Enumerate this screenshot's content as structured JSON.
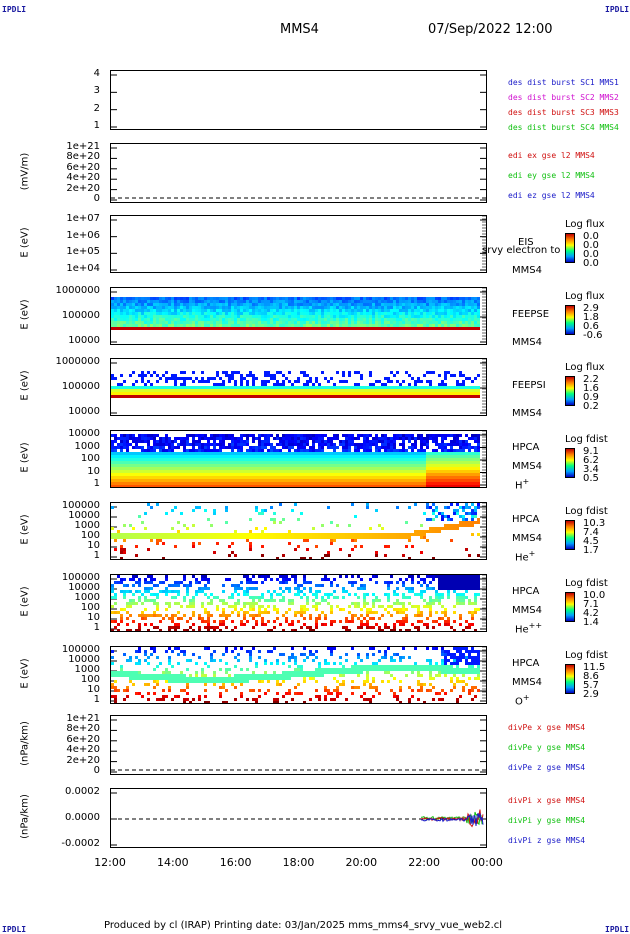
{
  "corners": {
    "tl": "IPDLI",
    "tr": "IPDLI",
    "bl": "IPDLI",
    "br": "IPDLI"
  },
  "header": {
    "spacecraft": "MMS4",
    "datetime": "07/Sep/2022 12:00"
  },
  "footer": "Produced by cl (IRAP)    Printing date: 03/Jan/2025    mms_mms4_srvy_vue_web2.cl",
  "colors": {
    "blue": "#1a1ac8",
    "magenta": "#d010d0",
    "red": "#d01010",
    "green": "#10c010"
  },
  "chart_data": {
    "type": "multi-panel time series / spectrogram",
    "x_ticks": [
      "12:00",
      "14:00",
      "16:00",
      "18:00",
      "20:00",
      "22:00",
      "00:00"
    ],
    "panels": [
      {
        "id": "burst",
        "ylabel": "",
        "ticks": [
          "4",
          "3",
          "2",
          "1"
        ],
        "ylim": [
          0.5,
          4.5
        ],
        "legend": [
          "des dist burst SC1 MMS1",
          "des dist burst SC2 MMS2",
          "des dist burst SC3 MMS3",
          "des dist burst SC4 MMS4"
        ]
      },
      {
        "id": "edi",
        "ylabel": "(mV/m)",
        "ticks": [
          "1e+21",
          "8e+20",
          "6e+20",
          "4e+20",
          "2e+20",
          "0"
        ],
        "ylim": [
          0,
          1e+21
        ],
        "legend": [
          "edi ex gse l2 MMS4",
          "edi ey gse l2 MMS4",
          "edi ez gse l2 MMS4"
        ]
      },
      {
        "id": "eis",
        "ylabel": "E (eV)",
        "ticks": [
          "1e+07",
          "1e+06",
          "1e+05",
          "1e+04"
        ],
        "side": [
          "EIS",
          "MMS4"
        ],
        "overlay": "srvy electron to",
        "ctitle": "Log flux",
        "cvals": [
          "0.0",
          "0.0",
          "0.0",
          "0.0"
        ]
      },
      {
        "id": "feepse",
        "ylabel": "E (eV)",
        "ticks": [
          "1000000",
          "100000",
          "10000"
        ],
        "side": [
          "FEEPSE",
          "MMS4"
        ],
        "ctitle": "Log flux",
        "cvals": [
          "2.9",
          "1.8",
          "0.6",
          "-0.6"
        ]
      },
      {
        "id": "feepsi",
        "ylabel": "E (eV)",
        "ticks": [
          "1000000",
          "100000",
          "10000"
        ],
        "side": [
          "FEEPSI",
          "MMS4"
        ],
        "ctitle": "Log flux",
        "cvals": [
          "2.2",
          "1.6",
          "0.9",
          "0.2"
        ]
      },
      {
        "id": "hpca_h",
        "ylabel": "E (eV)",
        "ticks": [
          "10000",
          "1000",
          "100",
          "10",
          "1"
        ],
        "side": [
          "HPCA",
          "MMS4"
        ],
        "species": "H",
        "charge": "+",
        "ctitle": "Log fdist",
        "cvals": [
          "9.1",
          "6.2",
          "3.4",
          "0.5"
        ]
      },
      {
        "id": "hpca_he1",
        "ylabel": "E (eV)",
        "ticks": [
          "100000",
          "10000",
          "1000",
          "100",
          "10",
          "1"
        ],
        "side": [
          "HPCA",
          "MMS4"
        ],
        "species": "He",
        "charge": "+",
        "ctitle": "Log fdist",
        "cvals": [
          "10.3",
          "7.4",
          "4.5",
          "1.7"
        ]
      },
      {
        "id": "hpca_he2",
        "ylabel": "E (eV)",
        "ticks": [
          "100000",
          "10000",
          "1000",
          "100",
          "10",
          "1"
        ],
        "side": [
          "HPCA",
          "MMS4"
        ],
        "species": "He",
        "charge": "++",
        "ctitle": "Log fdist",
        "cvals": [
          "10.0",
          "7.1",
          "4.2",
          "1.4"
        ]
      },
      {
        "id": "hpca_o",
        "ylabel": "E (eV)",
        "ticks": [
          "100000",
          "10000",
          "1000",
          "100",
          "10",
          "1"
        ],
        "side": [
          "HPCA",
          "MMS4"
        ],
        "species": "O",
        "charge": "+",
        "ctitle": "Log fdist",
        "cvals": [
          "11.5",
          "8.6",
          "5.7",
          "2.9"
        ]
      },
      {
        "id": "divpe",
        "ylabel": "(nPa/km)",
        "ticks": [
          "1e+21",
          "8e+20",
          "6e+20",
          "4e+20",
          "2e+20",
          "0"
        ],
        "ylim": [
          0,
          1e+21
        ],
        "legend": [
          "divPe x gse MMS4",
          "divPe y gse MMS4",
          "divPe z gse MMS4"
        ]
      },
      {
        "id": "divpi",
        "ylabel": "(nPa/km)",
        "ticks": [
          "0.0002",
          "0.0000",
          "-0.0002"
        ],
        "ylim": [
          -0.0003,
          0.0003
        ],
        "legend": [
          "divPi x gse MMS4",
          "divPi y gse MMS4",
          "divPi z gse MMS4"
        ]
      }
    ]
  }
}
